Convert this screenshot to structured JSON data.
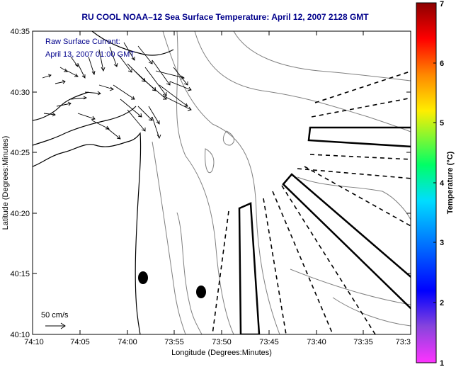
{
  "title": "RU COOL  NOAA–12  Sea Surface Temperature:  April 12, 2007 2128 GMT",
  "legend": {
    "line1": "Raw Surface Current:",
    "line2": "April 13, 2007 01:00 GMT"
  },
  "scale_label": "50 cm/s",
  "x_axis": {
    "label": "Longitude (Degrees:Minutes)",
    "ticks": [
      "74:10",
      "74:05",
      "74:00",
      "73:55",
      "73:50",
      "73:45",
      "73:40",
      "73:35",
      "73:3"
    ]
  },
  "y_axis": {
    "label": "Latitude (Degrees:Minutes)",
    "ticks": [
      "40:35",
      "40:30",
      "40:25",
      "40:20",
      "40:15",
      "40:10"
    ]
  },
  "colorbar": {
    "label": "Temperature (°C)",
    "ticks": [
      "7",
      "6",
      "5",
      "4",
      "3",
      "2",
      "1"
    ],
    "colors": [
      "#ff33ff",
      "#8844dd",
      "#0000ff",
      "#00ddff",
      "#00ff66",
      "#ffee00",
      "#ff8800",
      "#ff0000",
      "#8b0000"
    ]
  }
}
